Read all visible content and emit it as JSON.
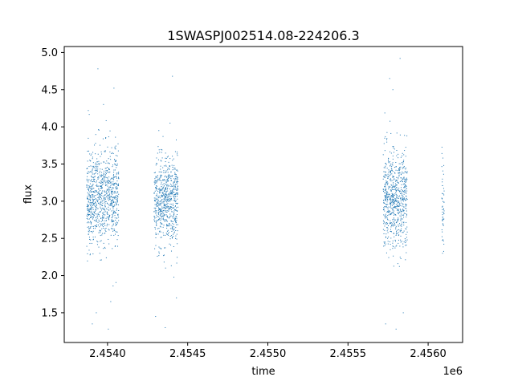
{
  "chart_data": {
    "type": "scatter",
    "title": "1SWASPJ002514.08-224206.3",
    "xlabel": "time",
    "ylabel": "flux",
    "x_offset_label": "1e6",
    "xlim": [
      2453730,
      2456215
    ],
    "ylim": [
      1.1,
      5.08
    ],
    "xticks": [
      2453900,
      2454050,
      2454200,
      2454350,
      2454500,
      2454650,
      2454800,
      2454950,
      2455100,
      2455250,
      2455400,
      2455550,
      2455700,
      2455850,
      2456000,
      2456150
    ],
    "xticks_main": [
      2454000,
      2454500,
      2455000,
      2455500,
      2456000
    ],
    "xtick_labels": [
      "2.4540",
      "2.4545",
      "2.4550",
      "2.4555",
      "2.4560"
    ],
    "yticks": [
      1.5,
      2.0,
      2.5,
      3.0,
      3.5,
      4.0,
      4.5,
      5.0
    ],
    "ytick_labels": [
      "1.5",
      "2.0",
      "2.5",
      "3.0",
      "3.5",
      "4.0",
      "4.5",
      "5.0"
    ],
    "grid": false,
    "marker_color": "#1f77b4",
    "series": [
      {
        "clusters": [
          {
            "x_range": [
              2453870,
              2454070
            ],
            "center": 3.05,
            "spread": 0.33,
            "n": 900,
            "outliers": [
              [
                2453905,
                1.35
              ],
              [
                2453940,
                4.78
              ],
              [
                2453975,
                4.3
              ],
              [
                2454005,
                1.28
              ],
              [
                2454040,
                4.52
              ],
              [
                2453930,
                1.5
              ],
              [
                2454020,
                1.65
              ],
              [
                2453880,
                4.22
              ]
            ]
          },
          {
            "x_range": [
              2454290,
              2454440
            ],
            "center": 3.0,
            "spread": 0.3,
            "n": 700,
            "outliers": [
              [
                2454300,
                1.45
              ],
              [
                2454360,
                1.3
              ],
              [
                2454405,
                4.68
              ],
              [
                2454430,
                1.7
              ],
              [
                2454390,
                4.05
              ],
              [
                2454320,
                3.95
              ]
            ]
          },
          {
            "x_range": [
              2455720,
              2455870
            ],
            "center": 3.05,
            "spread": 0.33,
            "n": 700,
            "outliers": [
              [
                2455735,
                1.35
              ],
              [
                2455760,
                4.65
              ],
              [
                2455800,
                1.28
              ],
              [
                2455825,
                4.92
              ],
              [
                2455845,
                1.5
              ],
              [
                2455780,
                4.5
              ]
            ]
          },
          {
            "x_range": [
              2456085,
              2456100
            ],
            "center": 3.0,
            "spread": 0.3,
            "n": 50,
            "outliers": [
              [
                2456092,
                3.58
              ],
              [
                2456090,
                2.3
              ]
            ]
          }
        ]
      }
    ]
  }
}
